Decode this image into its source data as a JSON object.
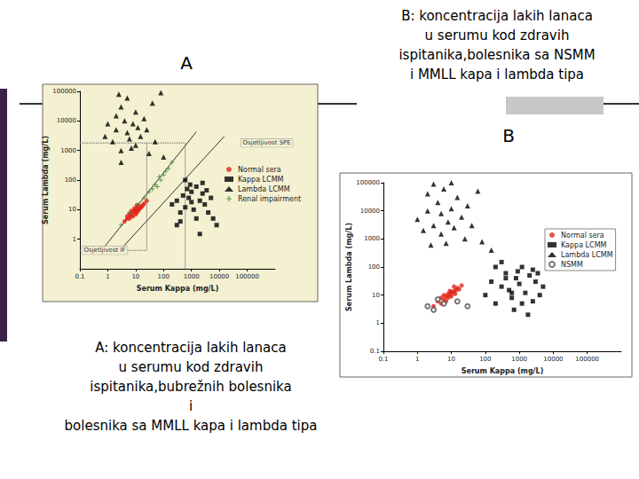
{
  "chart_data": [
    {
      "type": "scatter",
      "title": "A",
      "subtitle": "A: koncentracija lakih lanaca\nu serumu kod zdravih\nispitanika,bubrežnih bolesnika\ni\nbolesnika sa MMLL kapa i lambda tipa",
      "x_label": "Serum Kappa (mg/L)",
      "y_label": "Serum Lambda (mg/L)",
      "log": true,
      "grid": false,
      "legend": "right",
      "xlim": [
        0.1,
        1000000
      ],
      "ylim": [
        0.1,
        100000
      ],
      "xticks": [
        0.1,
        1,
        10,
        100,
        1000,
        10000,
        100000
      ],
      "yticks": [
        1,
        10,
        100,
        1000,
        10000,
        100000
      ],
      "series": [
        {
          "name": "Normal sera",
          "color": "#e2231a",
          "marker": "circle",
          "x": [
            4,
            5,
            6,
            6,
            7,
            8,
            8,
            9,
            10,
            10,
            11,
            12,
            12,
            13,
            14,
            15,
            16,
            18,
            20,
            7,
            9,
            11,
            5,
            25
          ],
          "values": [
            4,
            5,
            5,
            7,
            6,
            6,
            8,
            9,
            7,
            10,
            8,
            9,
            12,
            10,
            11,
            13,
            12,
            14,
            16,
            9,
            11,
            14,
            6,
            20
          ]
        },
        {
          "name": "Kappa LCMM",
          "color": "#000000",
          "marker": "square",
          "x": [
            200,
            300,
            400,
            500,
            600,
            800,
            1000,
            1200,
            1500,
            2000,
            2500,
            3000,
            4000,
            5000,
            6000,
            8000,
            700,
            900,
            1500,
            2500,
            3500,
            400,
            600,
            1000,
            300,
            2000
          ],
          "values": [
            15,
            20,
            8,
            30,
            12,
            25,
            40,
            10,
            60,
            20,
            35,
            15,
            8,
            25,
            5,
            3,
            50,
            70,
            5,
            80,
            45,
            4,
            100,
            18,
            3,
            1.5
          ]
        },
        {
          "name": "Lambda LCMM",
          "color": "#000000",
          "marker": "triangle",
          "x": [
            0.8,
            1,
            1.5,
            2,
            2,
            3,
            3,
            4,
            5,
            5,
            6,
            8,
            10,
            10,
            12,
            15,
            20,
            25,
            30,
            40,
            50,
            80,
            100,
            3,
            7,
            2.5
          ],
          "values": [
            3000,
            8000,
            2000,
            15000,
            5000,
            30000,
            1000,
            10000,
            4000,
            60000,
            2500,
            8000,
            20000,
            1500,
            6000,
            3000,
            12000,
            5000,
            800,
            40000,
            2000,
            90000,
            600,
            400,
            1200,
            80000
          ]
        },
        {
          "name": "Renal impairment",
          "color": "#3a8a2a",
          "marker": "plus",
          "x": [
            3,
            6,
            12,
            20,
            30,
            40,
            50,
            60,
            80,
            100,
            120,
            70,
            150,
            200
          ],
          "values": [
            3,
            8,
            15,
            25,
            40,
            50,
            70,
            60,
            100,
            150,
            200,
            130,
            250,
            400
          ]
        },
        {
          "type": "line",
          "color": "#333333",
          "line_style": "solid",
          "x": [
            0.7,
            1500
          ],
          "values": [
            0.5,
            4300
          ]
        },
        {
          "type": "line",
          "color": "#333333",
          "line_style": "solid",
          "x": [
            3.2,
            15000
          ],
          "values": [
            0.5,
            3000
          ]
        },
        {
          "type": "line",
          "color": "#555555",
          "line_style": "dotted",
          "x": [
            0.1,
            600,
            600
          ],
          "values": [
            1800,
            1800,
            0.1
          ]
        },
        {
          "type": "line",
          "color": "#555555",
          "line_style": "dotted",
          "x": [
            0.1,
            25,
            25
          ],
          "values": [
            0.42,
            0.42,
            1800
          ]
        }
      ],
      "annotations": [
        {
          "text": "Osjetljivost SPE",
          "x": 60000,
          "y": 1800
        },
        {
          "text": "Osjetljivost IF",
          "x": 0.12,
          "y": 0.42
        }
      ]
    },
    {
      "type": "scatter",
      "title": "B",
      "subtitle": "B: koncentracija lakih lanaca\nu serumu kod zdravih\nispitanika,bolesnika sa NSMM\ni MMLL kapa i lambda tipa",
      "x_label": "Serum Kappa (mg/L)",
      "y_label": "Serum Lambda (mg/L)",
      "log": true,
      "grid": false,
      "legend": "right",
      "xlim": [
        0.1,
        1000000
      ],
      "ylim": [
        0.1,
        100000
      ],
      "xticks": [
        0.1,
        1,
        10,
        100,
        1000,
        10000,
        100000
      ],
      "yticks": [
        0.1,
        1,
        10,
        100,
        1000,
        10000,
        100000
      ],
      "series": [
        {
          "name": "Normal sera",
          "color": "#e2231a",
          "marker": "circle",
          "x": [
            3,
            4,
            5,
            5,
            6,
            7,
            8,
            8,
            9,
            10,
            10,
            11,
            12,
            13,
            14,
            15,
            6,
            9,
            12,
            17,
            20,
            7
          ],
          "values": [
            4,
            6,
            5,
            8,
            7,
            9,
            8,
            11,
            10,
            9,
            13,
            12,
            14,
            11,
            15,
            18,
            10,
            14,
            20,
            16,
            22,
            6
          ]
        },
        {
          "name": "Kappa LCMM",
          "color": "#000000",
          "marker": "square",
          "x": [
            100,
            150,
            200,
            300,
            400,
            500,
            600,
            800,
            1000,
            1200,
            1500,
            2000,
            2500,
            3000,
            4000,
            5000,
            300,
            700,
            900,
            1800,
            2500,
            400,
            1200,
            3500,
            600,
            200
          ],
          "values": [
            10,
            30,
            5,
            20,
            60,
            15,
            8,
            40,
            25,
            100,
            12,
            50,
            6,
            30,
            10,
            20,
            150,
            3,
            70,
            2,
            80,
            40,
            5,
            60,
            12,
            100
          ]
        },
        {
          "name": "Lambda LCMM",
          "color": "#000000",
          "marker": "triangle",
          "x": [
            1,
            1.5,
            2,
            2,
            3,
            4,
            5,
            5,
            6,
            8,
            10,
            12,
            15,
            20,
            25,
            30,
            40,
            60,
            80,
            150,
            3,
            7,
            2.5,
            10
          ],
          "values": [
            5000,
            2000,
            10000,
            40000,
            3000,
            20000,
            1500,
            8000,
            60000,
            4000,
            12000,
            2500,
            30000,
            6000,
            1000,
            15000,
            3000,
            50000,
            800,
            400,
            90000,
            700,
            600,
            100000
          ]
        },
        {
          "name": "NSMM",
          "color": "#555555",
          "marker": "open_circle",
          "x": [
            2,
            3,
            4,
            6,
            15,
            30
          ],
          "values": [
            4,
            3,
            7,
            5,
            6,
            4
          ]
        }
      ]
    }
  ]
}
